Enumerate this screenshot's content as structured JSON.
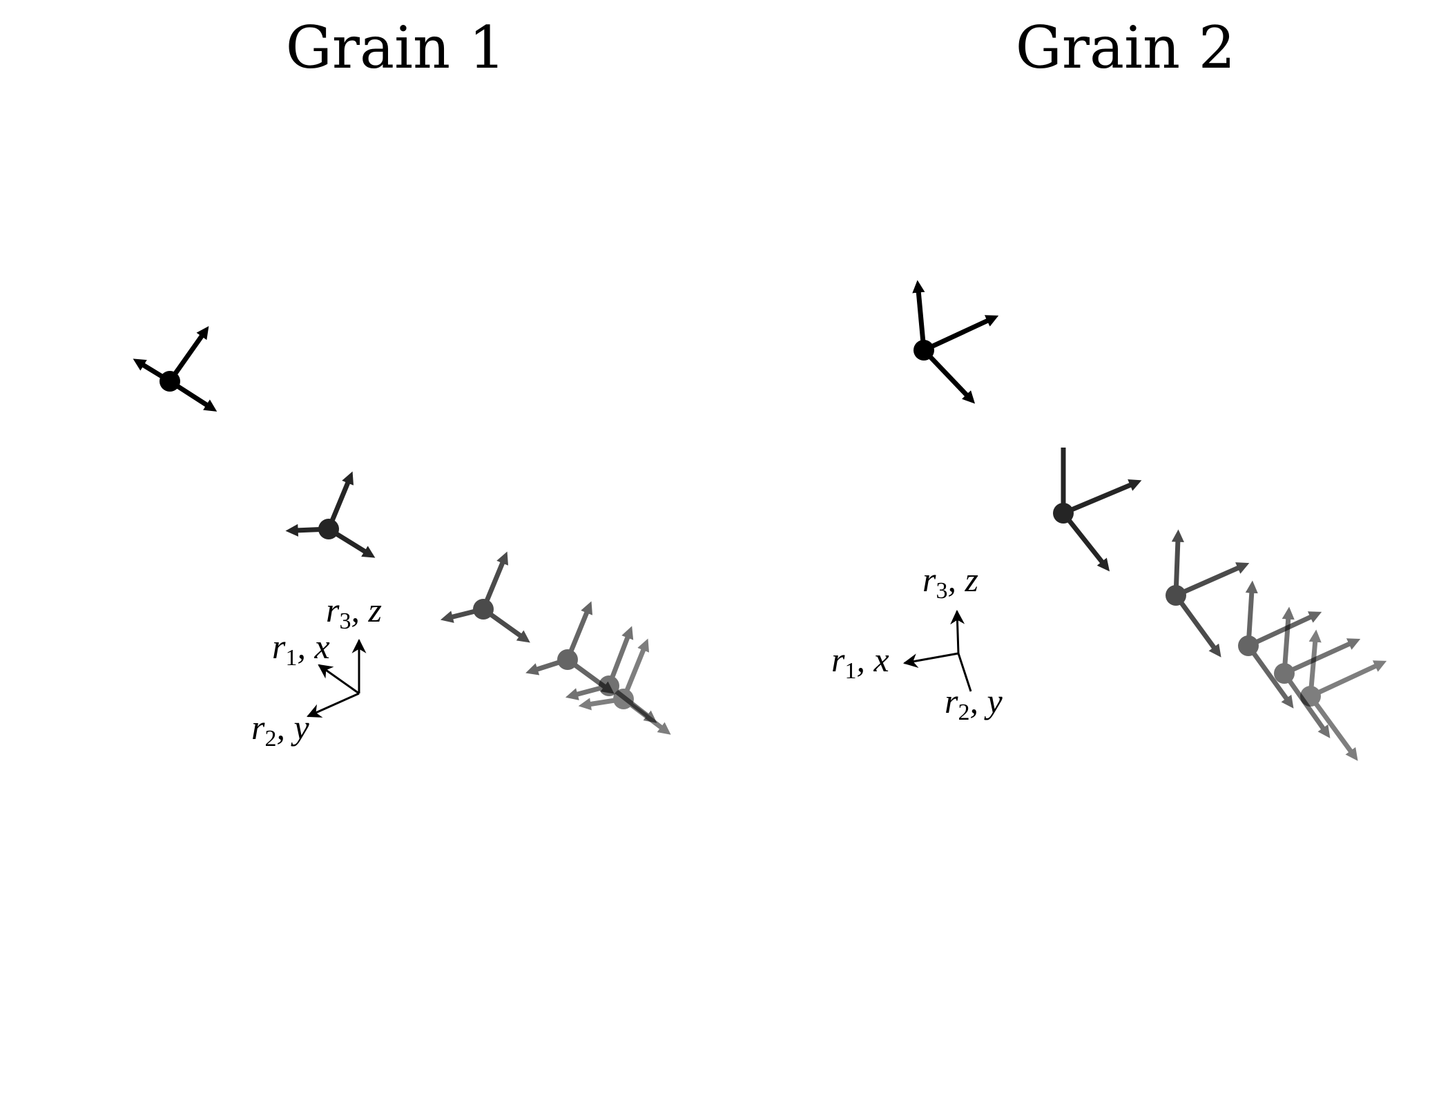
{
  "panels": [
    {
      "title": "Grain 1",
      "reference_axes": [
        {
          "symbol": "r",
          "sub": "1",
          "tail": ", x"
        },
        {
          "symbol": "r",
          "sub": "2",
          "tail": ", y"
        },
        {
          "symbol": "r",
          "sub": "3",
          "tail": ", z"
        }
      ],
      "frame_count": 6
    },
    {
      "title": "Grain 2",
      "reference_axes": [
        {
          "symbol": "r",
          "sub": "1",
          "tail": ", x"
        },
        {
          "symbol": "r",
          "sub": "2",
          "tail": ", y"
        },
        {
          "symbol": "r",
          "sub": "3",
          "tail": ", z"
        }
      ],
      "frame_count": 6
    }
  ],
  "colors": {
    "ink": "#000000",
    "background": "#ffffff"
  }
}
